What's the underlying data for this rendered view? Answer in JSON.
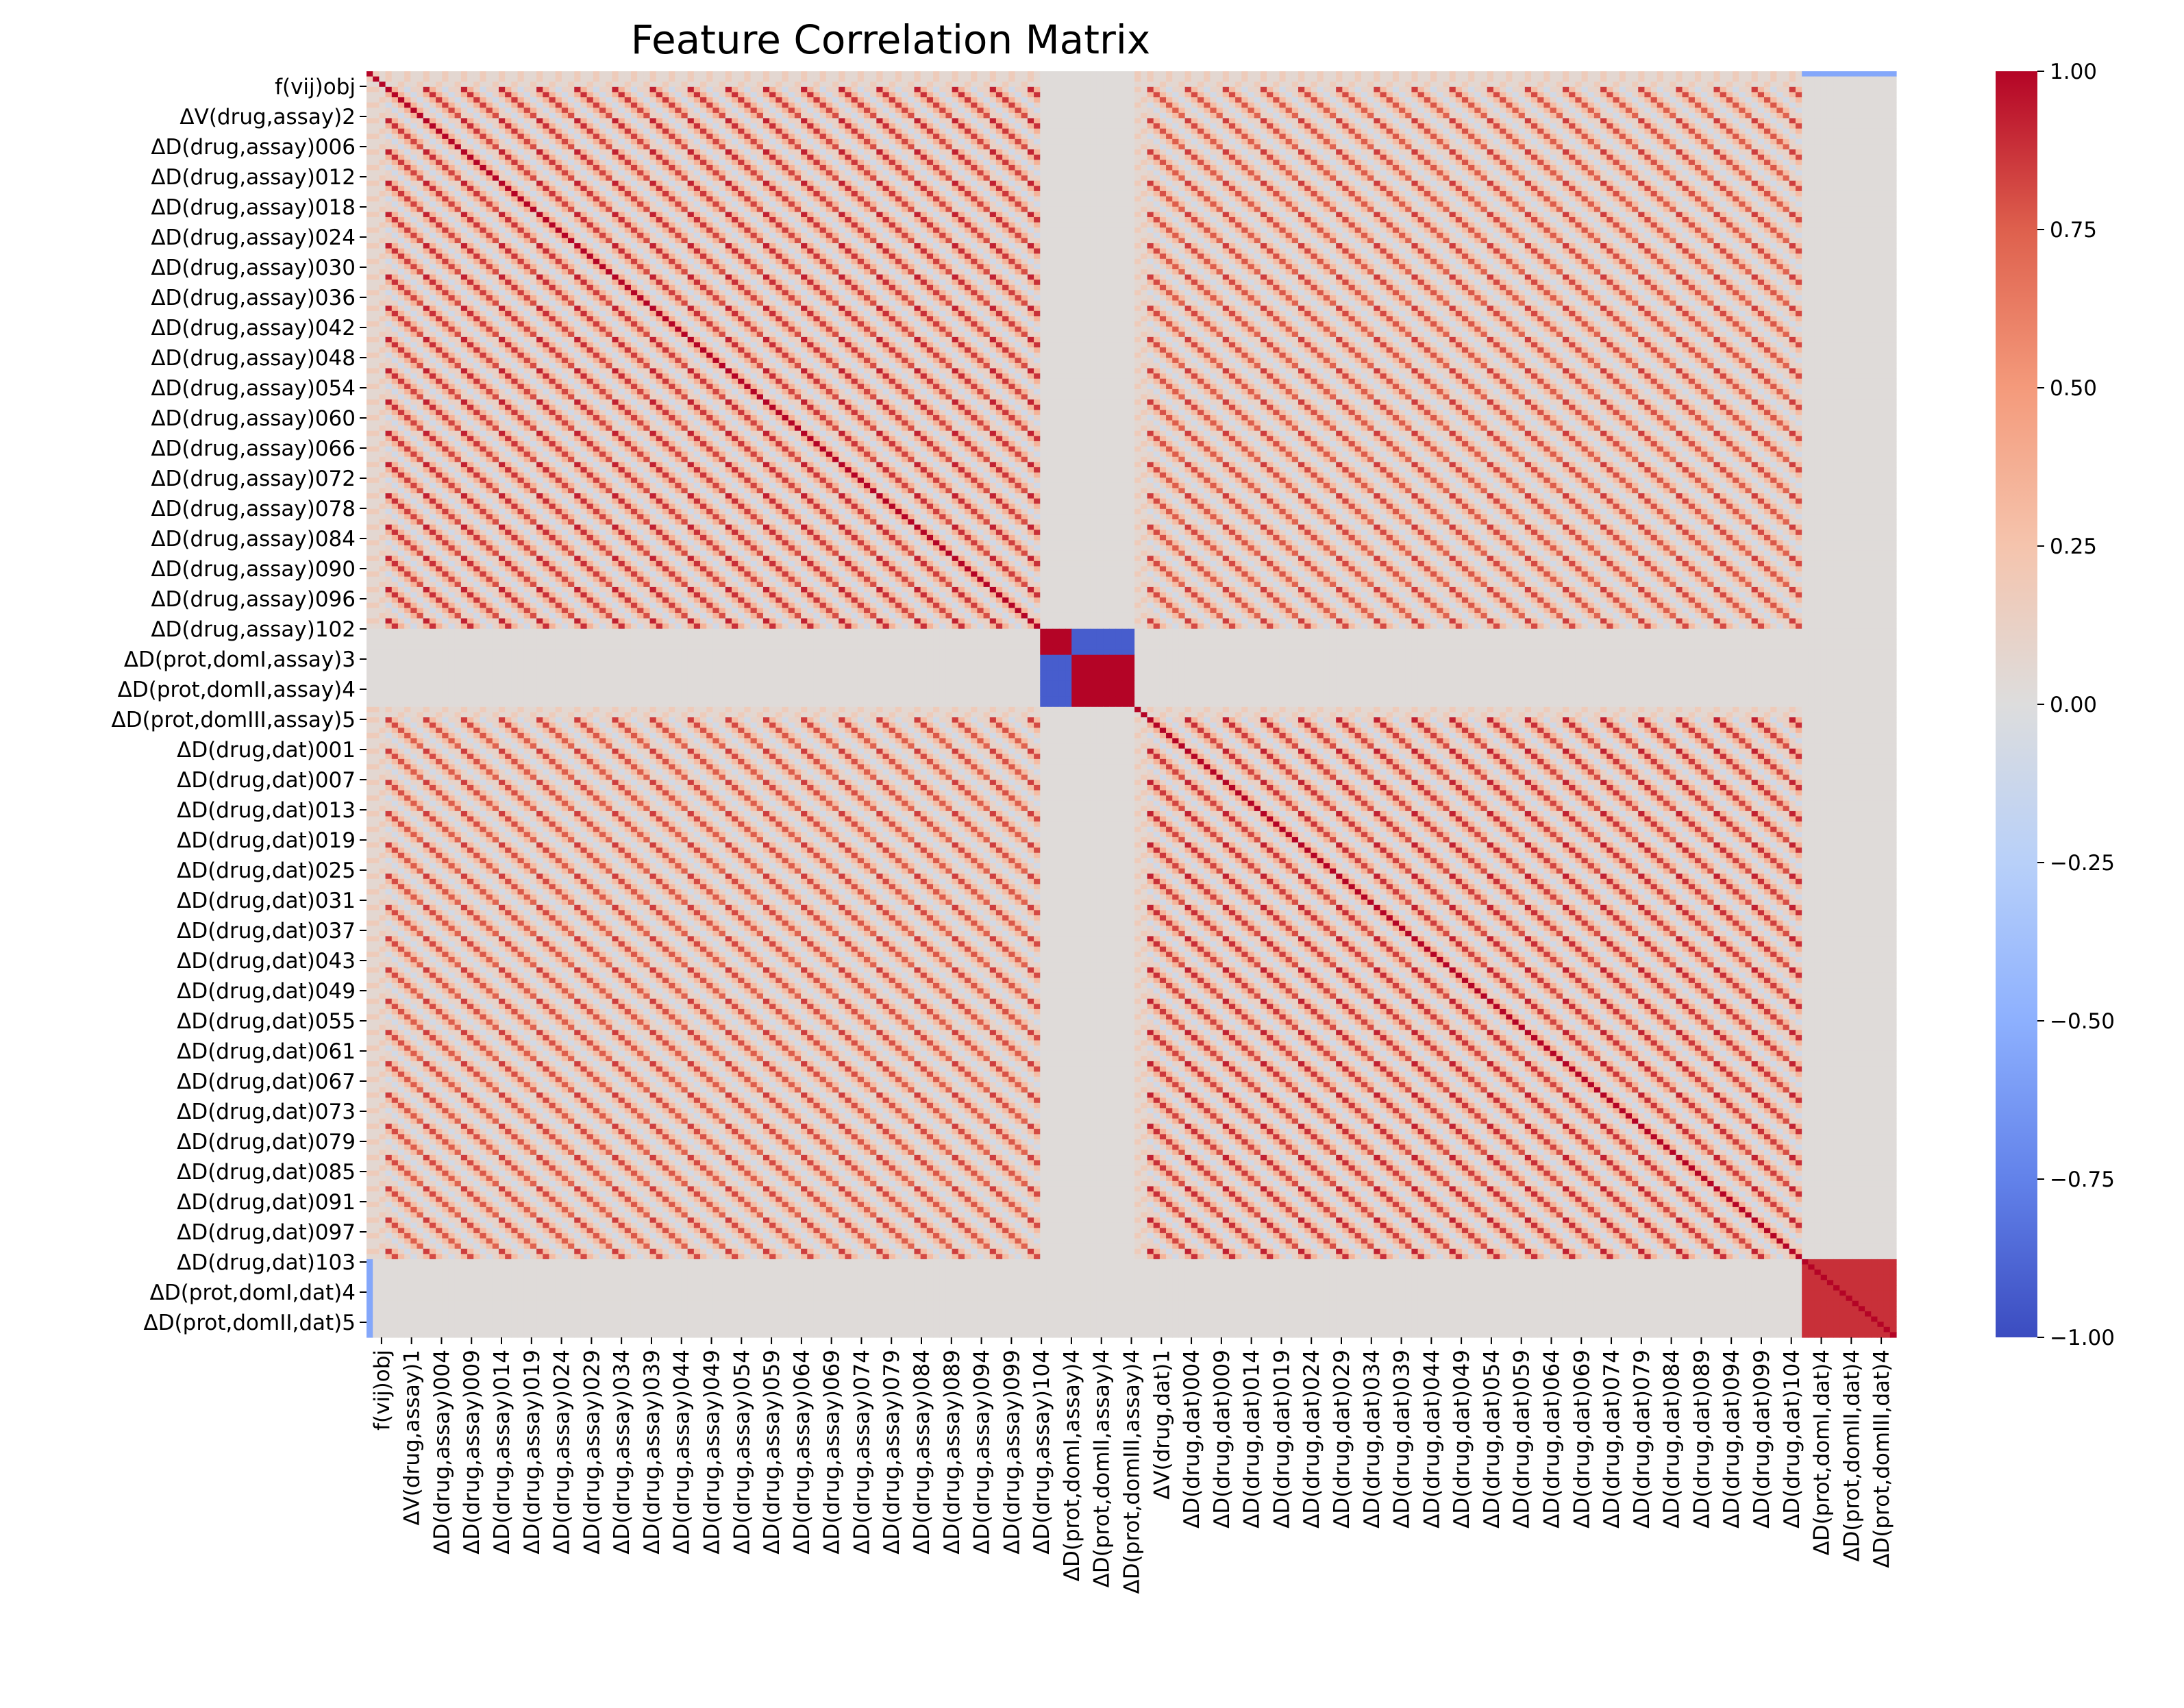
{
  "chart_data": {
    "type": "heatmap",
    "title": "Feature Correlation Matrix",
    "xlabel": "",
    "ylabel": "",
    "colormap": "coolwarm",
    "vmin": -1.0,
    "vmax": 1.0,
    "colorbar_position": "right",
    "colorbar_ticks": [
      "1.00",
      "0.75",
      "0.50",
      "0.25",
      "0.00",
      "−0.25",
      "−0.50",
      "−0.75",
      "−1.00"
    ],
    "colorbar_tick_values": [
      1.0,
      0.75,
      0.5,
      0.25,
      0.0,
      -0.25,
      -0.5,
      -0.75,
      -1.0
    ],
    "y_tick_labels": [
      "f(vij)obj",
      "ΔV(drug,assay)2",
      "ΔD(drug,assay)006",
      "ΔD(drug,assay)012",
      "ΔD(drug,assay)018",
      "ΔD(drug,assay)024",
      "ΔD(drug,assay)030",
      "ΔD(drug,assay)036",
      "ΔD(drug,assay)042",
      "ΔD(drug,assay)048",
      "ΔD(drug,assay)054",
      "ΔD(drug,assay)060",
      "ΔD(drug,assay)066",
      "ΔD(drug,assay)072",
      "ΔD(drug,assay)078",
      "ΔD(drug,assay)084",
      "ΔD(drug,assay)090",
      "ΔD(drug,assay)096",
      "ΔD(drug,assay)102",
      "ΔD(prot,domI,assay)3",
      "ΔD(prot,domII,assay)4",
      "ΔD(prot,domIII,assay)5",
      "ΔD(drug,dat)001",
      "ΔD(drug,dat)007",
      "ΔD(drug,dat)013",
      "ΔD(drug,dat)019",
      "ΔD(drug,dat)025",
      "ΔD(drug,dat)031",
      "ΔD(drug,dat)037",
      "ΔD(drug,dat)043",
      "ΔD(drug,dat)049",
      "ΔD(drug,dat)055",
      "ΔD(drug,dat)061",
      "ΔD(drug,dat)067",
      "ΔD(drug,dat)073",
      "ΔD(drug,dat)079",
      "ΔD(drug,dat)085",
      "ΔD(drug,dat)091",
      "ΔD(drug,dat)097",
      "ΔD(drug,dat)103",
      "ΔD(prot,domI,dat)4",
      "ΔD(prot,domII,dat)5"
    ],
    "x_tick_labels": [
      "f(vij)obj",
      "ΔV(drug,assay)1",
      "ΔD(drug,assay)004",
      "ΔD(drug,assay)009",
      "ΔD(drug,assay)014",
      "ΔD(drug,assay)019",
      "ΔD(drug,assay)024",
      "ΔD(drug,assay)029",
      "ΔD(drug,assay)034",
      "ΔD(drug,assay)039",
      "ΔD(drug,assay)044",
      "ΔD(drug,assay)049",
      "ΔD(drug,assay)054",
      "ΔD(drug,assay)059",
      "ΔD(drug,assay)064",
      "ΔD(drug,assay)069",
      "ΔD(drug,assay)074",
      "ΔD(drug,assay)079",
      "ΔD(drug,assay)084",
      "ΔD(drug,assay)089",
      "ΔD(drug,assay)094",
      "ΔD(drug,assay)099",
      "ΔD(drug,assay)104",
      "ΔD(prot,domI,assay)4",
      "ΔD(prot,domII,assay)4",
      "ΔD(prot,domIII,assay)4",
      "ΔV(drug,dat)1",
      "ΔD(drug,dat)004",
      "ΔD(drug,dat)009",
      "ΔD(drug,dat)014",
      "ΔD(drug,dat)019",
      "ΔD(drug,dat)024",
      "ΔD(drug,dat)029",
      "ΔD(drug,dat)034",
      "ΔD(drug,dat)039",
      "ΔD(drug,dat)044",
      "ΔD(drug,dat)049",
      "ΔD(drug,dat)054",
      "ΔD(drug,dat)059",
      "ΔD(drug,dat)064",
      "ΔD(drug,dat)069",
      "ΔD(drug,dat)074",
      "ΔD(drug,dat)079",
      "ΔD(drug,dat)084",
      "ΔD(drug,dat)089",
      "ΔD(drug,dat)094",
      "ΔD(drug,dat)099",
      "ΔD(drug,dat)104",
      "ΔD(prot,domI,dat)4",
      "ΔD(prot,domII,dat)4",
      "ΔD(prot,domIII,dat)4"
    ],
    "blocks": [
      {
        "name": "f(vij)obj",
        "size": 1,
        "kind": "objective"
      },
      {
        "name": "ΔV(drug,assay)",
        "size": 2,
        "kind": "vel"
      },
      {
        "name": "ΔD(drug,assay)",
        "size": 104,
        "kind": "drug"
      },
      {
        "name": "ΔD(prot,dom,assay)",
        "size": 15,
        "kind": "prot"
      },
      {
        "name": "ΔV(drug,dat)",
        "size": 2,
        "kind": "vel"
      },
      {
        "name": "ΔD(drug,dat)",
        "size": 104,
        "kind": "drug"
      },
      {
        "name": "ΔD(prot,dom,dat)",
        "size": 15,
        "kind": "prot"
      }
    ],
    "drug_pattern": {
      "period": 6,
      "component_groups": [
        0,
        1,
        2,
        3,
        4,
        5
      ],
      "within_group_corr": {
        "0": 0.92,
        "1": 0.88,
        "2": 0.86,
        "3": 0.84,
        "4": 0.82,
        "5": 0.8
      },
      "cross_group_corr": 0.35
    },
    "prot_pattern": {
      "assay_self_corr": 1.0,
      "assay_anti_corr": -0.92,
      "dat_corr": 0.88
    },
    "objective_corr_with_prot_dat": -0.55,
    "diagonal": 1.0
  }
}
